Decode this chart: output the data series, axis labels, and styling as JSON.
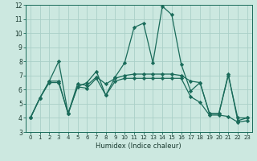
{
  "xlabel": "Humidex (Indice chaleur)",
  "bg_color": "#cce8e0",
  "line_color": "#1a6b5a",
  "grid_color": "#aacfc8",
  "xlim": [
    -0.5,
    23.5
  ],
  "ylim": [
    3,
    12
  ],
  "yticks": [
    3,
    4,
    5,
    6,
    7,
    8,
    9,
    10,
    11,
    12
  ],
  "xticks": [
    0,
    1,
    2,
    3,
    4,
    5,
    6,
    7,
    8,
    9,
    10,
    11,
    12,
    13,
    14,
    15,
    16,
    17,
    18,
    19,
    20,
    21,
    22,
    23
  ],
  "curves": [
    {
      "x": [
        0,
        1,
        2,
        3,
        4,
        5,
        6,
        7,
        8,
        9,
        10,
        11,
        12,
        13,
        14,
        15,
        16,
        17,
        18,
        19,
        20,
        21,
        22,
        23
      ],
      "y": [
        4.0,
        5.4,
        6.6,
        8.0,
        4.3,
        6.2,
        6.5,
        7.3,
        5.6,
        6.9,
        7.9,
        10.4,
        10.7,
        7.9,
        11.9,
        11.3,
        7.8,
        5.9,
        6.5,
        4.3,
        4.3,
        7.0,
        4.0,
        4.0
      ]
    },
    {
      "x": [
        0,
        1,
        2,
        3,
        4,
        5,
        6,
        7,
        8,
        9,
        10,
        11,
        12,
        13,
        14,
        15,
        16,
        17,
        18,
        19,
        20,
        21,
        22,
        23
      ],
      "y": [
        4.0,
        5.4,
        6.6,
        6.6,
        4.3,
        6.4,
        6.3,
        6.9,
        6.4,
        6.8,
        7.0,
        7.1,
        7.1,
        7.1,
        7.1,
        7.1,
        7.0,
        6.6,
        6.5,
        4.3,
        4.3,
        7.1,
        3.8,
        4.0
      ]
    },
    {
      "x": [
        0,
        1,
        2,
        3,
        4,
        5,
        6,
        7,
        8,
        9,
        10,
        11,
        12,
        13,
        14,
        15,
        16,
        17,
        18,
        19,
        20,
        21,
        22,
        23
      ],
      "y": [
        4.0,
        5.4,
        6.5,
        6.5,
        4.3,
        6.2,
        6.1,
        6.8,
        5.6,
        6.6,
        6.8,
        6.8,
        6.8,
        6.8,
        6.8,
        6.8,
        6.8,
        5.5,
        5.1,
        4.2,
        4.2,
        4.1,
        3.7,
        3.8
      ]
    }
  ]
}
